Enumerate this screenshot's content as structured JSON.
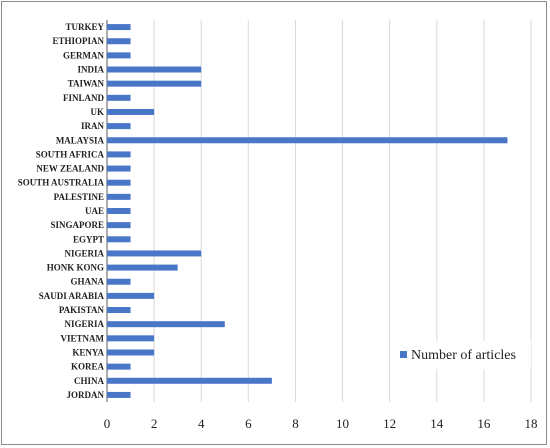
{
  "chart_data": {
    "type": "bar",
    "orientation": "horizontal",
    "categories": [
      "TURKEY",
      "ETHIOPIAN",
      "GERMAN",
      "INDIA",
      "TAIWAN",
      "FINLAND",
      "UK",
      "IRAN",
      "MALAYSIA",
      "SOUTH AFRICA",
      "NEW ZEALAND",
      "SOUTH AUSTRALIA",
      "PALESTINE",
      "UAE",
      "SINGAPORE",
      "EGYPT",
      "NIGERIA",
      "HONK KONG",
      "GHANA",
      "SAUDI ARABIA",
      "PAKISTAN",
      "NIGERIA",
      "VIETNAM",
      "KENYA",
      "KOREA",
      "CHINA",
      "JORDAN"
    ],
    "series": [
      {
        "name": "Number of articles",
        "values": [
          1,
          1,
          1,
          4,
          4,
          1,
          2,
          1,
          17,
          1,
          1,
          1,
          1,
          1,
          1,
          1,
          4,
          3,
          1,
          2,
          1,
          5,
          2,
          2,
          1,
          7,
          1
        ]
      }
    ],
    "xticks": [
      "0",
      "2",
      "4",
      "6",
      "8",
      "10",
      "12",
      "14",
      "16",
      "18"
    ],
    "xlim": [
      0,
      18
    ],
    "grid": true,
    "legend_position": "bottom-right",
    "colors": {
      "bar": "#4a76c7",
      "grid": "#d9d9d9",
      "axis": "#595959"
    }
  }
}
